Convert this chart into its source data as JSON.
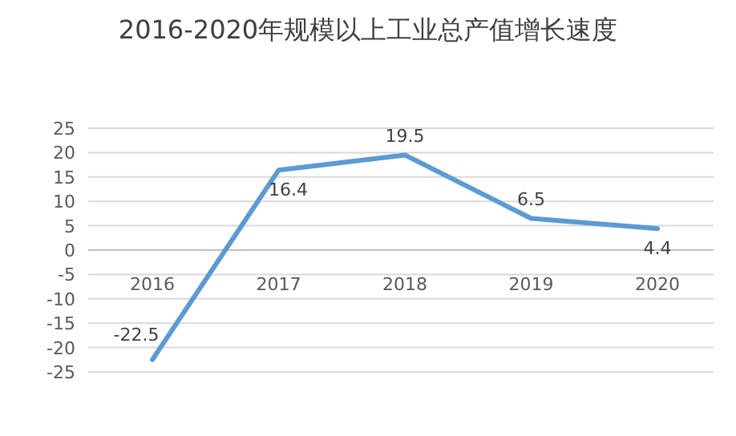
{
  "chart_data": {
    "type": "line",
    "title": "2016-2020年规模以上工业总产值增长速度",
    "categories": [
      "2016",
      "2017",
      "2018",
      "2019",
      "2020"
    ],
    "series": [
      {
        "color": "#5b9bd5",
        "values": [
          -22.5,
          16.4,
          19.5,
          6.5,
          4.4
        ]
      }
    ],
    "ylim": [
      -25,
      25
    ],
    "yticks": [
      -25,
      -20,
      -15,
      -10,
      -5,
      0,
      5,
      10,
      15,
      20,
      25
    ],
    "grid": "y",
    "data_labels": true,
    "marker": "none",
    "line_style": "solid"
  }
}
